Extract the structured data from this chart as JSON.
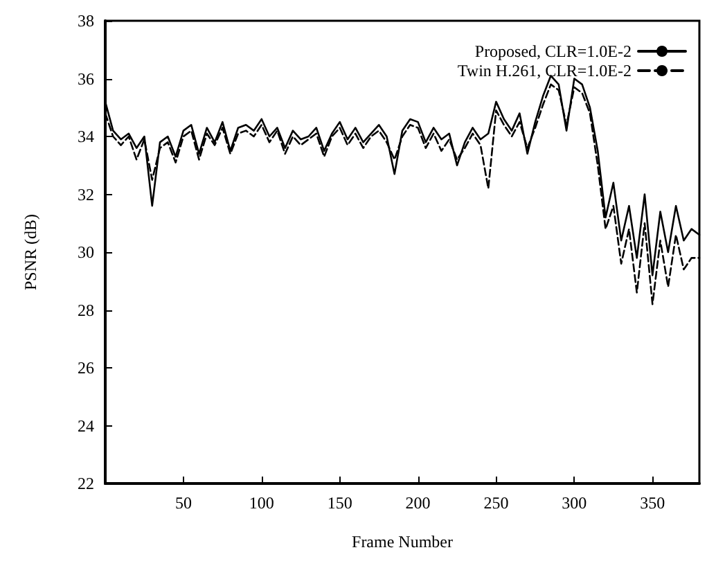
{
  "chart_data": {
    "type": "line",
    "xlabel": "Frame Number",
    "ylabel": "PSNR (dB)",
    "xlim": [
      0,
      380
    ],
    "xticks": [
      50,
      100,
      150,
      200,
      250,
      300,
      350
    ],
    "ylim": [
      22,
      38
    ],
    "yticks": [
      22,
      24,
      26,
      28,
      30,
      32,
      34,
      36,
      38
    ],
    "grid": false,
    "legend": "top right",
    "marker": "none",
    "x": [
      0,
      5,
      10,
      15,
      20,
      25,
      30,
      35,
      40,
      45,
      50,
      55,
      60,
      65,
      70,
      75,
      80,
      85,
      90,
      95,
      100,
      105,
      110,
      115,
      120,
      125,
      130,
      135,
      140,
      145,
      150,
      155,
      160,
      165,
      170,
      175,
      180,
      185,
      190,
      195,
      200,
      205,
      210,
      215,
      220,
      225,
      230,
      235,
      240,
      245,
      250,
      255,
      260,
      265,
      270,
      275,
      280,
      285,
      290,
      295,
      300,
      305,
      310,
      315,
      320,
      325,
      330,
      335,
      340,
      345,
      350,
      355,
      360,
      365,
      370,
      375,
      380
    ],
    "series": [
      {
        "name": "Proposed, CLR=1.0E-2",
        "color": "#000000",
        "line_style": "solid",
        "values": [
          35.2,
          34.2,
          33.9,
          34.1,
          33.6,
          34.0,
          31.6,
          33.8,
          34.0,
          33.3,
          34.2,
          34.4,
          33.4,
          34.3,
          33.8,
          34.5,
          33.5,
          34.3,
          34.4,
          34.2,
          34.6,
          34.0,
          34.3,
          33.6,
          34.2,
          33.9,
          34.0,
          34.3,
          33.5,
          34.1,
          34.5,
          33.9,
          34.3,
          33.8,
          34.1,
          34.4,
          34.0,
          32.7,
          34.2,
          34.6,
          34.5,
          33.8,
          34.3,
          33.9,
          34.1,
          33.0,
          33.8,
          34.3,
          33.9,
          34.1,
          35.2,
          34.6,
          34.2,
          34.8,
          33.4,
          34.5,
          35.4,
          36.1,
          35.8,
          34.2,
          36.0,
          35.8,
          35.0,
          33.5,
          31.2,
          32.4,
          30.4,
          31.6,
          29.8,
          32.0,
          29.2,
          31.4,
          30.0,
          31.6,
          30.4,
          30.8,
          30.6
        ]
      },
      {
        "name": "Twin H.261, CLR=1.0E-2",
        "color": "#000000",
        "line_style": "dashed",
        "values": [
          34.8,
          34.0,
          33.7,
          34.0,
          33.2,
          33.9,
          32.5,
          33.6,
          33.8,
          33.1,
          34.0,
          34.2,
          33.2,
          34.1,
          33.7,
          34.3,
          33.4,
          34.1,
          34.2,
          34.0,
          34.4,
          33.8,
          34.2,
          33.4,
          34.0,
          33.7,
          33.9,
          34.1,
          33.3,
          34.0,
          34.3,
          33.7,
          34.1,
          33.6,
          34.0,
          34.2,
          33.8,
          33.2,
          34.0,
          34.4,
          34.3,
          33.6,
          34.1,
          33.5,
          33.9,
          33.2,
          33.6,
          34.1,
          33.7,
          32.2,
          34.9,
          34.4,
          34.0,
          34.5,
          33.6,
          34.3,
          35.1,
          35.8,
          35.6,
          34.4,
          35.7,
          35.5,
          34.8,
          33.0,
          30.8,
          31.6,
          29.6,
          30.8,
          28.6,
          31.0,
          28.2,
          30.4,
          28.8,
          30.6,
          29.4,
          29.8,
          29.8
        ]
      }
    ]
  }
}
